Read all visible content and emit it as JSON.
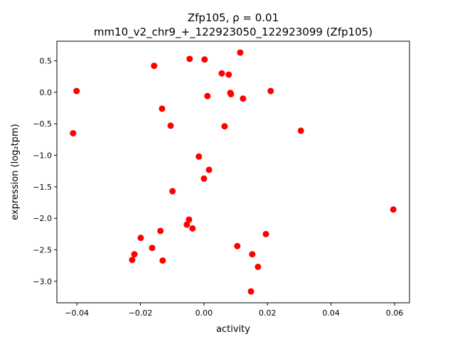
{
  "chart_data": {
    "type": "scatter",
    "title_line1": "Zfp105, ρ = 0.01",
    "title_line2": "mm10_v2_chr9_+_122923050_122923099 (Zfp105)",
    "xlabel": "activity",
    "ylabel": "expression (log₂tpm)",
    "xlim": [
      -0.0463,
      0.0647
    ],
    "ylim": [
      -3.34,
      0.81
    ],
    "xticks": [
      -0.04,
      -0.02,
      0.0,
      0.02,
      0.04,
      0.06
    ],
    "xtick_labels": [
      "−0.04",
      "−0.02",
      "0.00",
      "0.02",
      "0.04",
      "0.06"
    ],
    "yticks": [
      0.5,
      0.0,
      -0.5,
      -1.0,
      -1.5,
      -2.0,
      -2.5,
      -3.0
    ],
    "ytick_labels": [
      "0.5",
      "0.0",
      "−0.5",
      "−1.0",
      "−1.5",
      "−2.0",
      "−2.5",
      "−3.0"
    ],
    "grid": false,
    "marker_color": "#ff0000",
    "points": [
      [
        -0.0401,
        0.02
      ],
      [
        -0.0412,
        -0.65
      ],
      [
        -0.0157,
        0.42
      ],
      [
        -0.0045,
        0.53
      ],
      [
        0.0002,
        0.52
      ],
      [
        0.0114,
        0.63
      ],
      [
        0.0056,
        0.3
      ],
      [
        0.0078,
        0.28
      ],
      [
        0.0011,
        -0.06
      ],
      [
        0.0085,
        -0.03
      ],
      [
        0.0083,
        -0.01
      ],
      [
        0.0123,
        -0.1
      ],
      [
        0.021,
        0.02
      ],
      [
        -0.0132,
        -0.26
      ],
      [
        -0.0105,
        -0.53
      ],
      [
        0.0065,
        -0.54
      ],
      [
        0.0305,
        -0.61
      ],
      [
        -0.0016,
        -1.02
      ],
      [
        0.0016,
        -1.23
      ],
      [
        0.0,
        -1.37
      ],
      [
        -0.0099,
        -1.57
      ],
      [
        0.0596,
        -1.86
      ],
      [
        -0.0047,
        -2.02
      ],
      [
        -0.0054,
        -2.1
      ],
      [
        -0.0036,
        -2.16
      ],
      [
        -0.0137,
        -2.2
      ],
      [
        -0.0199,
        -2.31
      ],
      [
        0.0195,
        -2.25
      ],
      [
        0.0105,
        -2.44
      ],
      [
        -0.0163,
        -2.47
      ],
      [
        -0.0219,
        -2.57
      ],
      [
        -0.0226,
        -2.66
      ],
      [
        -0.013,
        -2.67
      ],
      [
        0.0152,
        -2.57
      ],
      [
        0.017,
        -2.77
      ],
      [
        0.0148,
        -3.16
      ]
    ]
  }
}
